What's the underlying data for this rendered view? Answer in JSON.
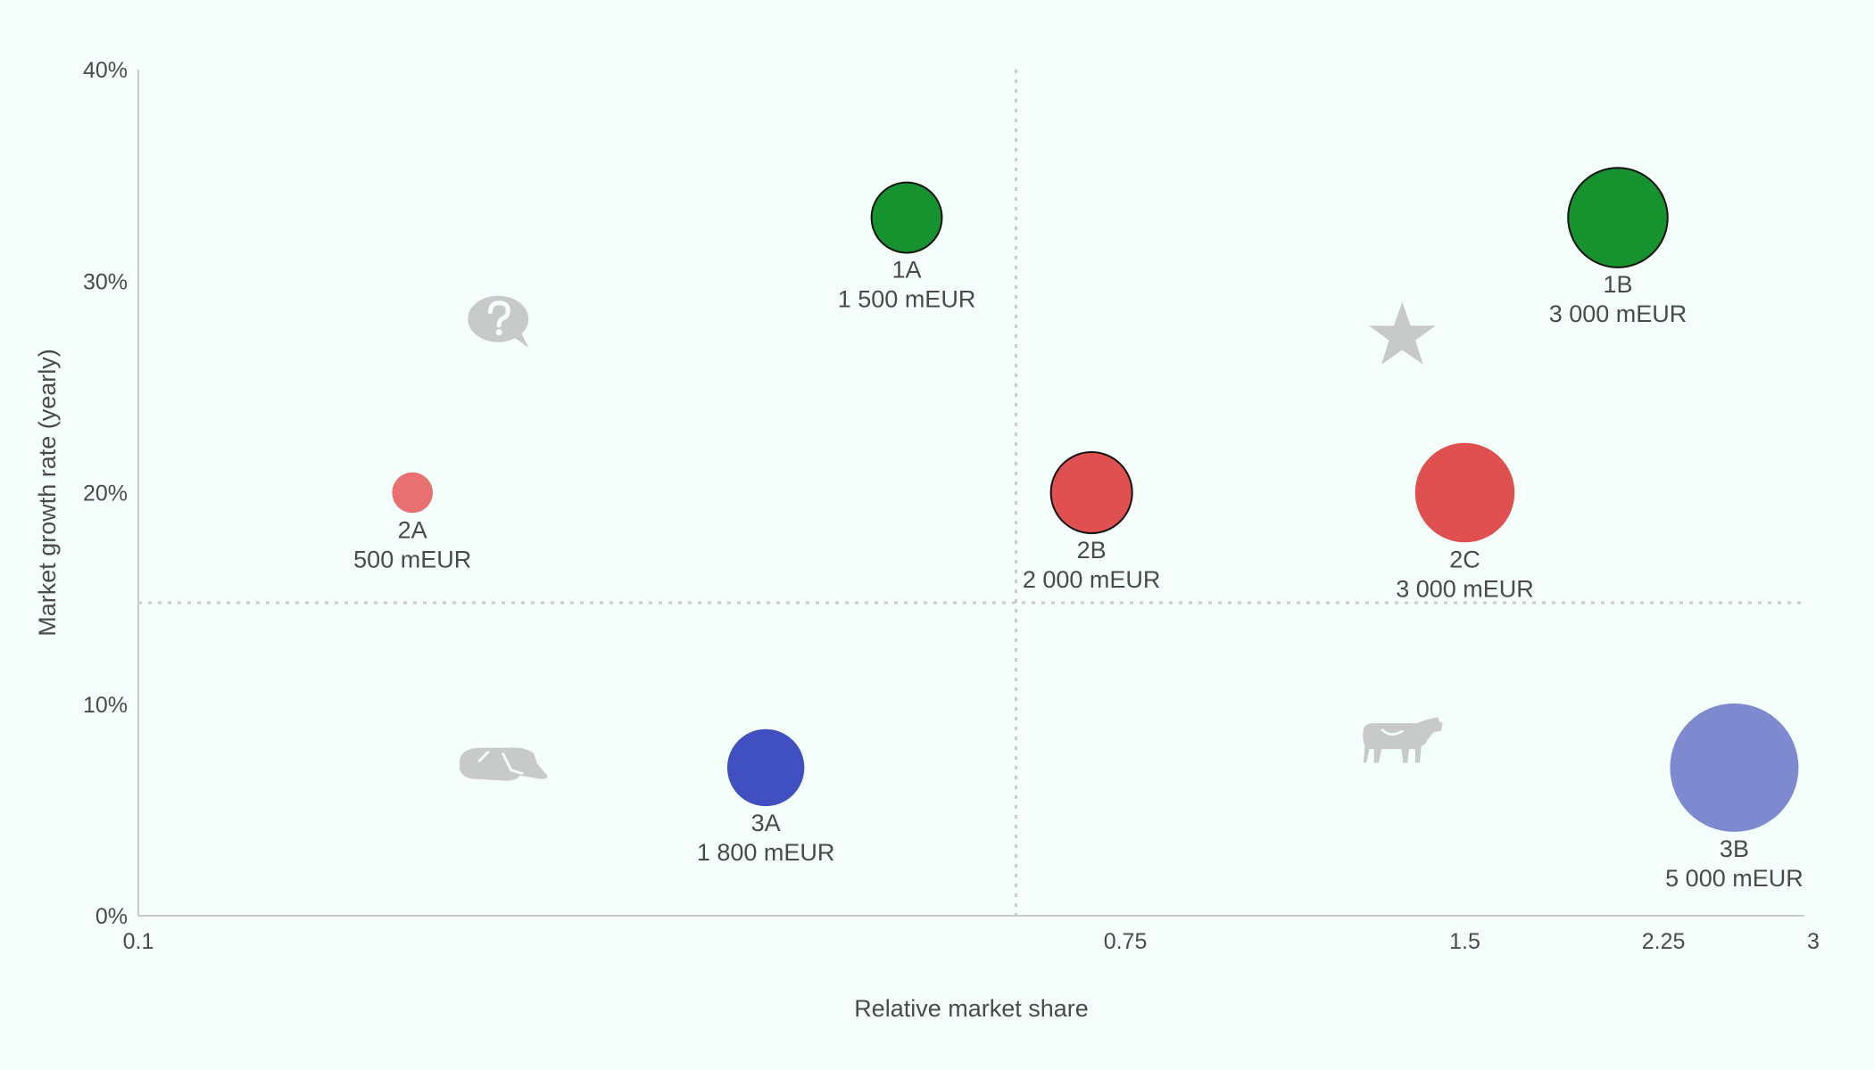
{
  "chart_data": {
    "type": "scatter",
    "title": "",
    "xlabel": "Relative market share",
    "ylabel": "Market growth rate (yearly)",
    "x_scale": "log",
    "xlim": [
      0.1,
      3
    ],
    "ylim": [
      0,
      40
    ],
    "x_ticks": [
      {
        "value": 0.1,
        "label": "0.1"
      },
      {
        "value": 0.75,
        "label": "0.75"
      },
      {
        "value": 1.5,
        "label": "1.5"
      },
      {
        "value": 2.25,
        "label": "2.25"
      },
      {
        "value": 3,
        "label": "3"
      }
    ],
    "y_ticks": [
      {
        "value": 0,
        "label": "0%"
      },
      {
        "value": 10,
        "label": "10%"
      },
      {
        "value": 20,
        "label": "20%"
      },
      {
        "value": 30,
        "label": "30%"
      },
      {
        "value": 40,
        "label": "40%"
      }
    ],
    "divider_x": 0.6,
    "divider_y": 14.8,
    "quadrant_icons": [
      {
        "icon": "question-mark-icon",
        "x": 0.21,
        "y": 28
      },
      {
        "icon": "star-icon",
        "x": 1.32,
        "y": 27.5
      },
      {
        "icon": "dog-icon",
        "x": 0.21,
        "y": 7.2
      },
      {
        "icon": "cow-icon",
        "x": 1.32,
        "y": 8.2
      }
    ],
    "points": [
      {
        "id": "1A",
        "label": "1 500 mEUR",
        "value": 1500,
        "x": 0.48,
        "y": 33,
        "color": "#16922f",
        "outline": true
      },
      {
        "id": "1B",
        "label": "3 000 mEUR",
        "value": 3000,
        "x": 2.05,
        "y": 33,
        "color": "#16922f",
        "outline": true
      },
      {
        "id": "2A",
        "label": "500 mEUR",
        "value": 500,
        "x": 0.175,
        "y": 20,
        "color": "#e87070",
        "outline": false
      },
      {
        "id": "2B",
        "label": "2 000 mEUR",
        "value": 2000,
        "x": 0.7,
        "y": 20,
        "color": "#e05050",
        "outline": true
      },
      {
        "id": "2C",
        "label": "3 000 mEUR",
        "value": 3000,
        "x": 1.5,
        "y": 20,
        "color": "#e05050",
        "outline": false
      },
      {
        "id": "3A",
        "label": "1 800 mEUR",
        "value": 1800,
        "x": 0.36,
        "y": 7,
        "color": "#4050c0",
        "outline": false
      },
      {
        "id": "3B",
        "label": "5 000 mEUR",
        "value": 5000,
        "x": 2.6,
        "y": 7,
        "color": "#7d8ad0",
        "outline": false
      }
    ]
  }
}
